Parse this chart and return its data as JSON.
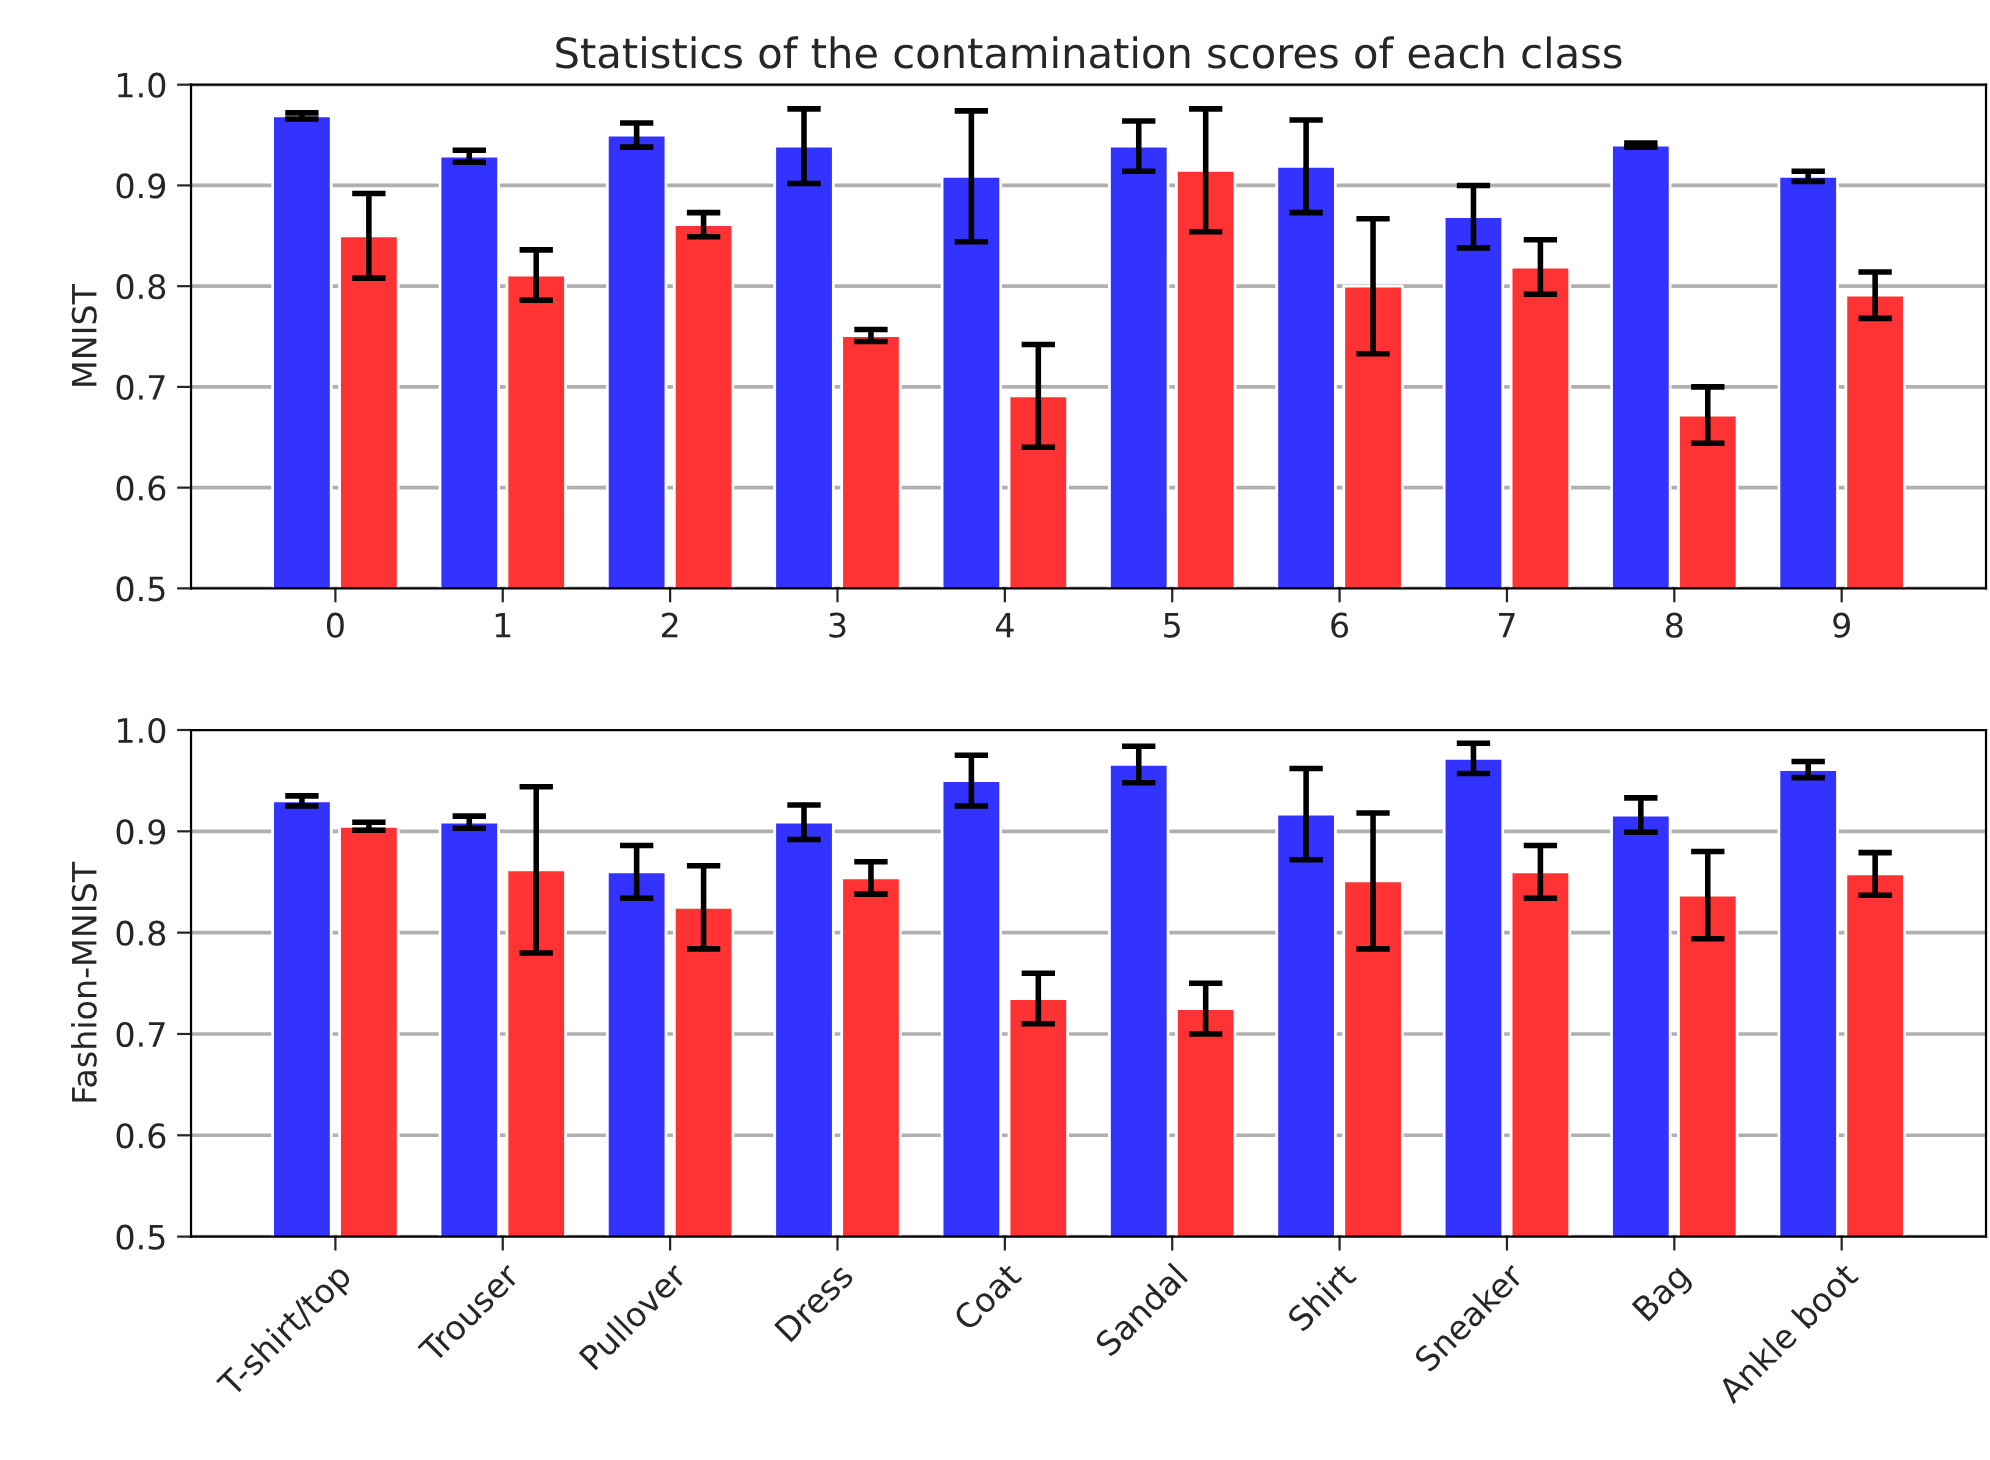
{
  "chart_data": [
    {
      "type": "bar",
      "title": "Statistics of the contamination scores of each class",
      "ylabel": "MNIST",
      "categories": [
        "0",
        "1",
        "2",
        "3",
        "4",
        "5",
        "6",
        "7",
        "8",
        "9"
      ],
      "ylim": [
        0.5,
        1.0
      ],
      "yticks": [
        0.5,
        0.6,
        0.7,
        0.8,
        0.9,
        {
          "value": 1,
          "label": "1.0"
        }
      ],
      "grid": "y",
      "series": [
        {
          "color": "#3333ff",
          "values": [
            0.969,
            0.929,
            0.95,
            0.939,
            0.909,
            0.939,
            0.919,
            0.869,
            0.94,
            0.909
          ],
          "errors": [
            0.003,
            0.006,
            0.012,
            0.037,
            0.065,
            0.025,
            0.046,
            0.031,
            0.002,
            0.005
          ]
        },
        {
          "color": "#ff3333",
          "values": [
            0.85,
            0.811,
            0.861,
            0.751,
            0.691,
            0.915,
            0.8,
            0.819,
            0.672,
            0.791
          ],
          "errors": [
            0.042,
            0.025,
            0.012,
            0.006,
            0.051,
            0.061,
            0.067,
            0.027,
            0.028,
            0.023
          ]
        }
      ]
    },
    {
      "type": "bar",
      "ylabel": "Fashion-MNIST",
      "categories": [
        "T-shirt/top",
        "Trouser",
        "Pullover",
        "Dress",
        "Coat",
        "Sandal",
        "Shirt",
        "Sneaker",
        "Bag",
        "Ankle boot"
      ],
      "ylim": [
        0.5,
        1.0
      ],
      "yticks": [
        0.5,
        0.6,
        0.7,
        0.8,
        0.9,
        {
          "value": 1,
          "label": "1.0"
        }
      ],
      "grid": "y",
      "series": [
        {
          "color": "#3333ff",
          "values": [
            0.93,
            0.909,
            0.86,
            0.909,
            0.95,
            0.966,
            0.917,
            0.972,
            0.916,
            0.961
          ],
          "errors": [
            0.005,
            0.006,
            0.026,
            0.017,
            0.025,
            0.018,
            0.045,
            0.015,
            0.017,
            0.008
          ]
        },
        {
          "color": "#ff3333",
          "values": [
            0.905,
            0.862,
            0.825,
            0.854,
            0.735,
            0.725,
            0.851,
            0.86,
            0.837,
            0.858
          ],
          "errors": [
            0.004,
            0.082,
            0.041,
            0.016,
            0.025,
            0.025,
            0.067,
            0.026,
            0.043,
            0.021
          ]
        }
      ]
    }
  ]
}
